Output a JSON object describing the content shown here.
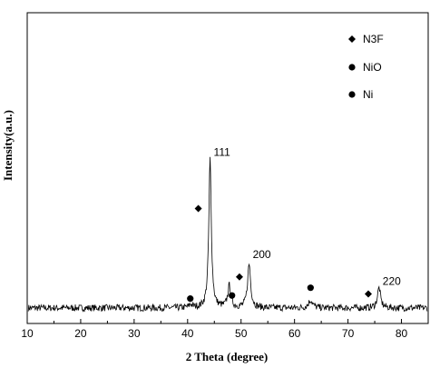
{
  "chart_data": {
    "type": "line",
    "title": "",
    "xlabel": "2 Theta (degree)",
    "ylabel": "Intensity(a.u.)",
    "xlim": [
      10,
      85
    ],
    "ylim": [
      0,
      100
    ],
    "x_ticks": [
      10,
      20,
      30,
      40,
      50,
      60,
      70,
      80
    ],
    "grid": false,
    "legend_position": "top-right",
    "legend": [
      {
        "marker": "diamond",
        "label": "N3F"
      },
      {
        "marker": "circle",
        "label": "NiO"
      },
      {
        "marker": "circle",
        "label": "Ni"
      }
    ],
    "baseline": 5,
    "peaks": [
      {
        "x": 40.6,
        "height": 1.0,
        "width": 0.35
      },
      {
        "x": 44.2,
        "height": 48.0,
        "width": 0.28
      },
      {
        "x": 47.8,
        "height": 7.0,
        "width": 0.35
      },
      {
        "x": 51.5,
        "height": 14.0,
        "width": 0.35
      },
      {
        "x": 63.0,
        "height": 2.5,
        "width": 0.45
      },
      {
        "x": 75.8,
        "height": 6.5,
        "width": 0.35
      }
    ],
    "peak_labels": [
      {
        "x": 44.2,
        "y": 54,
        "text": "111"
      },
      {
        "x": 51.5,
        "y": 21,
        "text": "200"
      },
      {
        "x": 75.8,
        "y": 12.5,
        "text": "220"
      }
    ],
    "markers": [
      {
        "type": "diamond",
        "x": 42.0,
        "y": 37
      },
      {
        "type": "circle",
        "x": 40.5,
        "y": 8
      },
      {
        "type": "circle",
        "x": 48.3,
        "y": 9
      },
      {
        "type": "diamond",
        "x": 49.7,
        "y": 15
      },
      {
        "type": "circle",
        "x": 63.0,
        "y": 11.5
      },
      {
        "type": "diamond",
        "x": 73.8,
        "y": 9.5
      }
    ]
  }
}
